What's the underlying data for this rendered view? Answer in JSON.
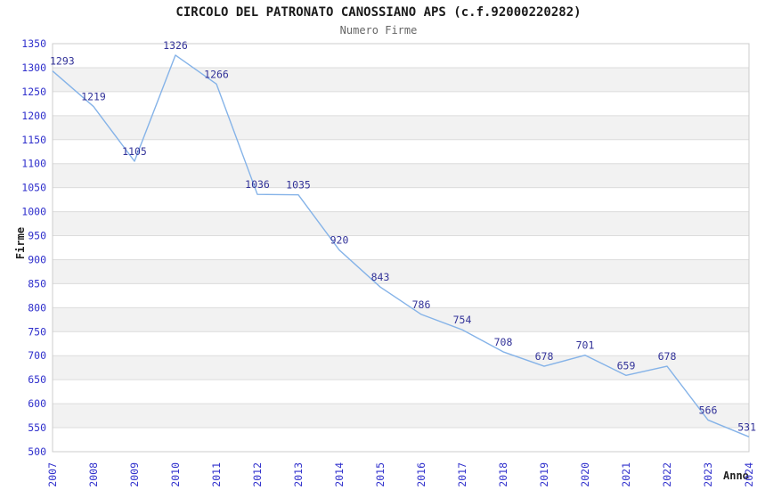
{
  "chart_data": {
    "type": "line",
    "title": "CIRCOLO DEL PATRONATO CANOSSIANO APS (c.f.92000220282)",
    "subtitle": "Numero Firme",
    "xlabel": "Anno",
    "ylabel": "Firme",
    "categories": [
      "2007",
      "2008",
      "2009",
      "2010",
      "2011",
      "2012",
      "2013",
      "2014",
      "2015",
      "2016",
      "2017",
      "2018",
      "2019",
      "2020",
      "2021",
      "2022",
      "2023",
      "2024"
    ],
    "values": [
      1293,
      1219,
      1105,
      1326,
      1266,
      1036,
      1035,
      920,
      843,
      786,
      754,
      708,
      678,
      701,
      659,
      678,
      566,
      531
    ],
    "ylim": [
      500,
      1350
    ],
    "ytick_step": 50,
    "grid": "horizontal",
    "bands": "alternating-horizontal",
    "legend": "none",
    "data_labels": "shown-above-points",
    "x_tick_rotation": -90,
    "colors": {
      "line": "#85b3e8",
      "tick_label": "#3030cc",
      "data_label": "#333399",
      "band": "#f2f2f2",
      "band_alt": "#ffffff",
      "grid_line": "#dcdcdc",
      "plot_border": "#cccccc",
      "title": "#1a1a1a",
      "subtitle": "#666666",
      "axis_title": "#222222"
    }
  }
}
